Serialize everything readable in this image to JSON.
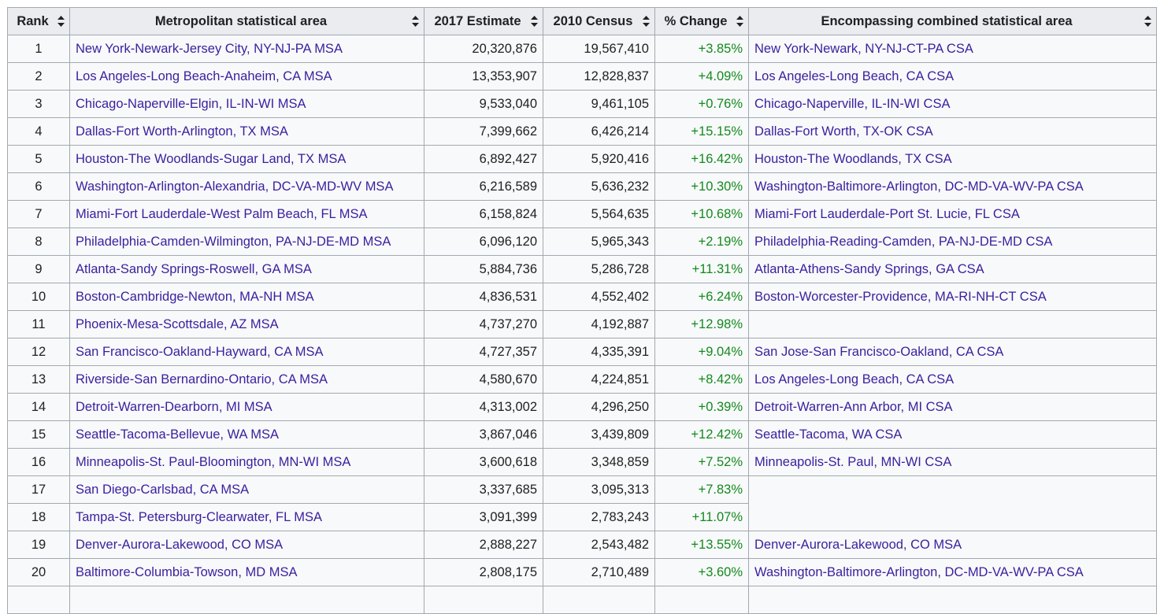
{
  "headers": {
    "rank": "Rank",
    "msa": "Metropolitan statistical area",
    "estimate": "2017 Estimate",
    "census": "2010 Census",
    "change": "% Change",
    "csa": "Encompassing combined statistical area"
  },
  "colors": {
    "link": "#3a1f9e",
    "positive_change": "#138a1e",
    "header_bg": "#eaecf0",
    "cell_bg": "#f8f9fa",
    "border": "#a2a9b1"
  },
  "rows": [
    {
      "rank": "1",
      "msa": "New York-Newark-Jersey City, NY-NJ-PA MSA",
      "estimate": "20,320,876",
      "census": "19,567,410",
      "change": "+3.85%",
      "csa": "New York-Newark, NY-NJ-CT-PA CSA"
    },
    {
      "rank": "2",
      "msa": "Los Angeles-Long Beach-Anaheim, CA MSA",
      "estimate": "13,353,907",
      "census": "12,828,837",
      "change": "+4.09%",
      "csa": "Los Angeles-Long Beach, CA CSA"
    },
    {
      "rank": "3",
      "msa": "Chicago-Naperville-Elgin, IL-IN-WI MSA",
      "estimate": "9,533,040",
      "census": "9,461,105",
      "change": "+0.76%",
      "csa": "Chicago-Naperville, IL-IN-WI CSA"
    },
    {
      "rank": "4",
      "msa": "Dallas-Fort Worth-Arlington, TX MSA",
      "estimate": "7,399,662",
      "census": "6,426,214",
      "change": "+15.15%",
      "csa": "Dallas-Fort Worth, TX-OK CSA"
    },
    {
      "rank": "5",
      "msa": "Houston-The Woodlands-Sugar Land, TX MSA",
      "estimate": "6,892,427",
      "census": "5,920,416",
      "change": "+16.42%",
      "csa": "Houston-The Woodlands, TX CSA"
    },
    {
      "rank": "6",
      "msa": "Washington-Arlington-Alexandria, DC-VA-MD-WV MSA",
      "estimate": "6,216,589",
      "census": "5,636,232",
      "change": "+10.30%",
      "csa": "Washington-Baltimore-Arlington, DC-MD-VA-WV-PA CSA"
    },
    {
      "rank": "7",
      "msa": "Miami-Fort Lauderdale-West Palm Beach, FL MSA",
      "estimate": "6,158,824",
      "census": "5,564,635",
      "change": "+10.68%",
      "csa": "Miami-Fort Lauderdale-Port St. Lucie, FL CSA"
    },
    {
      "rank": "8",
      "msa": "Philadelphia-Camden-Wilmington, PA-NJ-DE-MD MSA",
      "estimate": "6,096,120",
      "census": "5,965,343",
      "change": "+2.19%",
      "csa": "Philadelphia-Reading-Camden, PA-NJ-DE-MD CSA"
    },
    {
      "rank": "9",
      "msa": "Atlanta-Sandy Springs-Roswell, GA MSA",
      "estimate": "5,884,736",
      "census": "5,286,728",
      "change": "+11.31%",
      "csa": "Atlanta-Athens-Sandy Springs, GA CSA"
    },
    {
      "rank": "10",
      "msa": "Boston-Cambridge-Newton, MA-NH MSA",
      "estimate": "4,836,531",
      "census": "4,552,402",
      "change": "+6.24%",
      "csa": "Boston-Worcester-Providence, MA-RI-NH-CT CSA"
    },
    {
      "rank": "11",
      "msa": "Phoenix-Mesa-Scottsdale, AZ MSA",
      "estimate": "4,737,270",
      "census": "4,192,887",
      "change": "+12.98%",
      "csa": ""
    },
    {
      "rank": "12",
      "msa": "San Francisco-Oakland-Hayward, CA MSA",
      "estimate": "4,727,357",
      "census": "4,335,391",
      "change": "+9.04%",
      "csa": "San Jose-San Francisco-Oakland, CA CSA"
    },
    {
      "rank": "13",
      "msa": "Riverside-San Bernardino-Ontario, CA MSA",
      "estimate": "4,580,670",
      "census": "4,224,851",
      "change": "+8.42%",
      "csa": "Los Angeles-Long Beach, CA CSA"
    },
    {
      "rank": "14",
      "msa": "Detroit-Warren-Dearborn, MI MSA",
      "estimate": "4,313,002",
      "census": "4,296,250",
      "change": "+0.39%",
      "csa": "Detroit-Warren-Ann Arbor, MI CSA"
    },
    {
      "rank": "15",
      "msa": "Seattle-Tacoma-Bellevue, WA MSA",
      "estimate": "3,867,046",
      "census": "3,439,809",
      "change": "+12.42%",
      "csa": "Seattle-Tacoma, WA CSA"
    },
    {
      "rank": "16",
      "msa": "Minneapolis-St. Paul-Bloomington, MN-WI MSA",
      "estimate": "3,600,618",
      "census": "3,348,859",
      "change": "+7.52%",
      "csa": "Minneapolis-St. Paul, MN-WI CSA"
    },
    {
      "rank": "17",
      "msa": "San Diego-Carlsbad, CA MSA",
      "estimate": "3,337,685",
      "census": "3,095,313",
      "change": "+7.83%",
      "csa": ""
    },
    {
      "rank": "18",
      "msa": "Tampa-St. Petersburg-Clearwater, FL MSA",
      "estimate": "3,091,399",
      "census": "2,783,243",
      "change": "+11.07%",
      "csa": ""
    },
    {
      "rank": "19",
      "msa": "Denver-Aurora-Lakewood, CO MSA",
      "estimate": "2,888,227",
      "census": "2,543,482",
      "change": "+13.55%",
      "csa": "Denver-Aurora-Lakewood, CO MSA"
    },
    {
      "rank": "20",
      "msa": "Baltimore-Columbia-Towson, MD MSA",
      "estimate": "2,808,175",
      "census": "2,710,489",
      "change": "+3.60%",
      "csa": "Washington-Baltimore-Arlington, DC-MD-VA-WV-PA CSA"
    },
    {
      "rank": "",
      "msa": "",
      "estimate": "",
      "census": "",
      "change": "",
      "csa": ""
    }
  ]
}
